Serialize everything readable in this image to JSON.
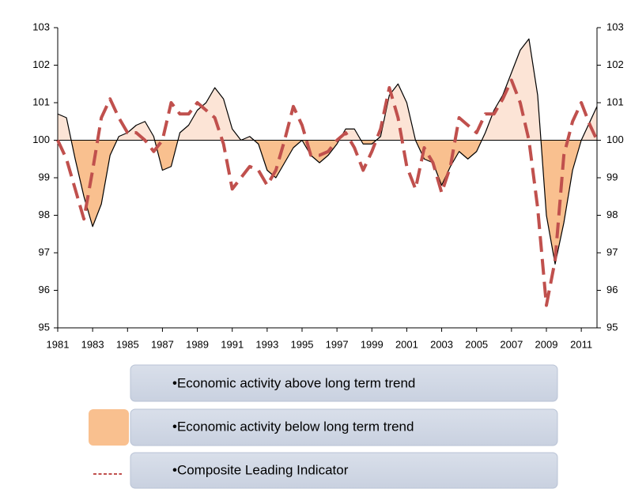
{
  "chart_data": {
    "type": "line",
    "x": [
      1981,
      1981.5,
      1982,
      1982.5,
      1983,
      1983.5,
      1984,
      1984.5,
      1985,
      1985.5,
      1986,
      1986.5,
      1987,
      1987.5,
      1988,
      1988.5,
      1989,
      1989.5,
      1990,
      1990.5,
      1991,
      1991.5,
      1992,
      1992.5,
      1993,
      1993.5,
      1994,
      1994.5,
      1995,
      1995.5,
      1996,
      1996.5,
      1997,
      1997.5,
      1998,
      1998.5,
      1999,
      1999.5,
      2000,
      2000.5,
      2001,
      2001.5,
      2002,
      2002.5,
      2003,
      2003.5,
      2004,
      2004.5,
      2005,
      2005.5,
      2006,
      2006.5,
      2007,
      2007.5,
      2008,
      2008.5,
      2009,
      2009.5,
      2010,
      2010.5,
      2011,
      2011.5,
      2011.9
    ],
    "series": [
      {
        "color": "#000000",
        "values": [
          100.7,
          100.6,
          99.5,
          98.5,
          97.7,
          98.3,
          99.6,
          100.1,
          100.2,
          100.4,
          100.5,
          100.1,
          99.2,
          99.3,
          100.2,
          100.4,
          100.8,
          101.0,
          101.4,
          101.1,
          100.3,
          100.0,
          100.1,
          99.9,
          99.2,
          99.0,
          99.4,
          99.8,
          100.0,
          99.6,
          99.4,
          99.6,
          99.9,
          100.3,
          100.3,
          99.9,
          99.9,
          100.1,
          101.2,
          101.5,
          101.0,
          100.0,
          99.5,
          99.4,
          98.8,
          99.3,
          99.7,
          99.5,
          99.7,
          100.2,
          100.8,
          101.2,
          101.8,
          102.4,
          102.7,
          101.2,
          98.0,
          96.7,
          97.8,
          99.2,
          100.0,
          100.5,
          100.9
        ]
      },
      {
        "name": "•Composite Leading Indicator",
        "color": "#c0504d",
        "dashed": true,
        "values": [
          100.0,
          99.5,
          98.7,
          97.9,
          99.2,
          100.6,
          101.1,
          100.6,
          100.2,
          100.2,
          100.0,
          99.7,
          100.0,
          101.0,
          100.7,
          100.7,
          101.0,
          100.8,
          100.6,
          99.9,
          98.7,
          99.0,
          99.3,
          99.2,
          98.8,
          99.2,
          100.0,
          100.9,
          100.4,
          99.6,
          99.6,
          99.7,
          100.0,
          100.2,
          99.8,
          99.2,
          99.7,
          100.3,
          101.4,
          100.6,
          99.3,
          98.7,
          99.8,
          99.4,
          98.6,
          99.3,
          100.6,
          100.4,
          100.2,
          100.7,
          100.7,
          101.1,
          101.6,
          101.0,
          100.0,
          98.2,
          95.6,
          96.8,
          99.6,
          100.5,
          101.0,
          100.4,
          100.0
        ]
      }
    ],
    "baseline": 100,
    "fill_above": {
      "name": "•Economic activity above long term trend",
      "color": "#fce4d6"
    },
    "fill_below": {
      "name": "•Economic activity below long term trend",
      "color": "#f9c08f"
    },
    "xlim": [
      1981,
      2011.9
    ],
    "xticks": [
      1981,
      1983,
      1985,
      1987,
      1989,
      1991,
      1993,
      1995,
      1997,
      1999,
      2001,
      2003,
      2005,
      2007,
      2009,
      2011
    ],
    "ylim": [
      95,
      103
    ],
    "yticks": [
      95,
      96,
      97,
      98,
      99,
      100,
      101,
      102,
      103
    ],
    "y2lim": [
      95,
      103
    ],
    "y2ticks": [
      95,
      96,
      97,
      98,
      99,
      100,
      101,
      102,
      103
    ]
  }
}
